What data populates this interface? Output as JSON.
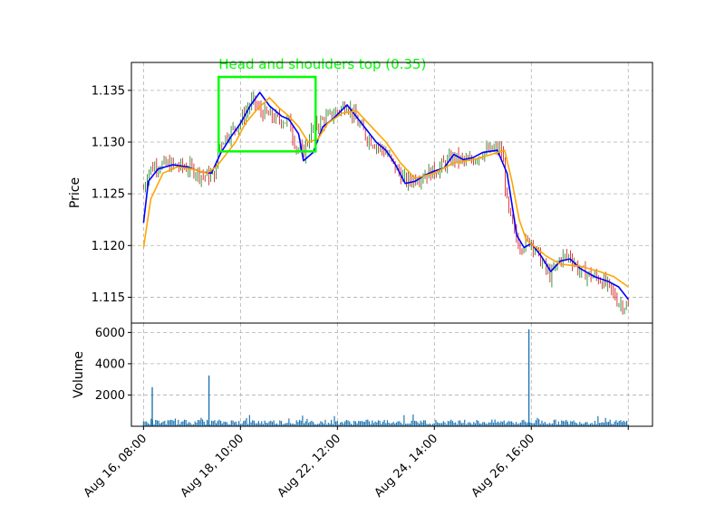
{
  "chart_data": [
    {
      "type": "candlestick",
      "panel": "price",
      "ylabel": "Price",
      "ylim": [
        1.1125,
        1.1377
      ],
      "yticks": [
        1.115,
        1.12,
        1.125,
        1.13,
        1.135
      ],
      "ytick_labels": [
        "1.115",
        "1.120",
        "1.125",
        "1.130",
        "1.135"
      ],
      "x_range": [
        -0.25,
        10.5
      ],
      "xticks": [
        0,
        2,
        4,
        6,
        8,
        10
      ],
      "xtick_labels": [
        "Aug 16, 08:00",
        "Aug 18, 10:00",
        "Aug 22, 12:00",
        "Aug 24, 14:00",
        "Aug 26, 16:00",
        ""
      ],
      "grid": true,
      "close_path": [
        [
          0.0,
          1.1255
        ],
        [
          0.1,
          1.1272
        ],
        [
          0.25,
          1.1278
        ],
        [
          0.5,
          1.1278
        ],
        [
          0.8,
          1.1276
        ],
        [
          1.0,
          1.1274
        ],
        [
          1.2,
          1.1268
        ],
        [
          1.4,
          1.1267
        ],
        [
          1.5,
          1.1272
        ],
        [
          1.55,
          1.1295
        ],
        [
          1.6,
          1.13
        ],
        [
          1.8,
          1.131
        ],
        [
          2.0,
          1.132
        ],
        [
          2.25,
          1.134
        ],
        [
          2.4,
          1.133
        ],
        [
          2.6,
          1.1325
        ],
        [
          2.8,
          1.1322
        ],
        [
          3.0,
          1.132
        ],
        [
          3.15,
          1.1295
        ],
        [
          3.3,
          1.129
        ],
        [
          3.5,
          1.1315
        ],
        [
          3.75,
          1.1322
        ],
        [
          4.0,
          1.133
        ],
        [
          4.2,
          1.1337
        ],
        [
          4.4,
          1.132
        ],
        [
          4.6,
          1.1305
        ],
        [
          5.0,
          1.129
        ],
        [
          5.2,
          1.1275
        ],
        [
          5.4,
          1.1262
        ],
        [
          5.6,
          1.1265
        ],
        [
          6.0,
          1.1272
        ],
        [
          6.4,
          1.1285
        ],
        [
          6.7,
          1.128
        ],
        [
          7.0,
          1.129
        ],
        [
          7.3,
          1.1293
        ],
        [
          7.4,
          1.129
        ],
        [
          7.5,
          1.124
        ],
        [
          7.6,
          1.122
        ],
        [
          7.75,
          1.12
        ],
        [
          8.0,
          1.1205
        ],
        [
          8.2,
          1.1185
        ],
        [
          8.4,
          1.117
        ],
        [
          8.6,
          1.1188
        ],
        [
          8.8,
          1.119
        ],
        [
          9.0,
          1.1175
        ],
        [
          9.4,
          1.1168
        ],
        [
          9.6,
          1.116
        ],
        [
          9.8,
          1.1145
        ],
        [
          10.0,
          1.114
        ]
      ],
      "series": [
        {
          "color": "#0000ff",
          "points": [
            [
              0.0,
              1.1222
            ],
            [
              0.1,
              1.1262
            ],
            [
              0.3,
              1.1274
            ],
            [
              0.6,
              1.1278
            ],
            [
              0.9,
              1.1276
            ],
            [
              1.2,
              1.1271
            ],
            [
              1.4,
              1.127
            ],
            [
              1.6,
              1.129
            ],
            [
              1.8,
              1.1305
            ],
            [
              2.0,
              1.1318
            ],
            [
              2.2,
              1.1335
            ],
            [
              2.4,
              1.1348
            ],
            [
              2.6,
              1.1335
            ],
            [
              2.85,
              1.1325
            ],
            [
              3.0,
              1.1322
            ],
            [
              3.2,
              1.1308
            ],
            [
              3.3,
              1.1282
            ],
            [
              3.5,
              1.129
            ],
            [
              3.7,
              1.1315
            ],
            [
              3.9,
              1.1322
            ],
            [
              4.2,
              1.1336
            ],
            [
              4.5,
              1.1318
            ],
            [
              4.8,
              1.13
            ],
            [
              5.0,
              1.1292
            ],
            [
              5.2,
              1.1278
            ],
            [
              5.4,
              1.126
            ],
            [
              5.6,
              1.1262
            ],
            [
              5.8,
              1.1268
            ],
            [
              6.0,
              1.1272
            ],
            [
              6.2,
              1.1275
            ],
            [
              6.4,
              1.1288
            ],
            [
              6.6,
              1.1283
            ],
            [
              6.8,
              1.1285
            ],
            [
              7.0,
              1.129
            ],
            [
              7.3,
              1.1292
            ],
            [
              7.5,
              1.127
            ],
            [
              7.6,
              1.124
            ],
            [
              7.7,
              1.121
            ],
            [
              7.85,
              1.1198
            ],
            [
              8.0,
              1.1202
            ],
            [
              8.2,
              1.119
            ],
            [
              8.4,
              1.1175
            ],
            [
              8.6,
              1.1185
            ],
            [
              8.8,
              1.1187
            ],
            [
              9.0,
              1.1178
            ],
            [
              9.3,
              1.117
            ],
            [
              9.6,
              1.1165
            ],
            [
              9.8,
              1.116
            ],
            [
              10.0,
              1.1148
            ]
          ]
        },
        {
          "color": "#ffa500",
          "points": [
            [
              0.0,
              1.1198
            ],
            [
              0.15,
              1.1245
            ],
            [
              0.4,
              1.127
            ],
            [
              0.7,
              1.1276
            ],
            [
              1.0,
              1.1274
            ],
            [
              1.3,
              1.127
            ],
            [
              1.5,
              1.1276
            ],
            [
              1.7,
              1.1288
            ],
            [
              1.9,
              1.13
            ],
            [
              2.1,
              1.1318
            ],
            [
              2.35,
              1.1332
            ],
            [
              2.6,
              1.1343
            ],
            [
              2.8,
              1.1333
            ],
            [
              3.0,
              1.1325
            ],
            [
              3.2,
              1.1315
            ],
            [
              3.4,
              1.13
            ],
            [
              3.6,
              1.1303
            ],
            [
              3.8,
              1.1318
            ],
            [
              4.1,
              1.1328
            ],
            [
              4.4,
              1.133
            ],
            [
              4.7,
              1.1315
            ],
            [
              5.0,
              1.13
            ],
            [
              5.3,
              1.128
            ],
            [
              5.6,
              1.1265
            ],
            [
              6.0,
              1.127
            ],
            [
              6.4,
              1.128
            ],
            [
              6.8,
              1.1283
            ],
            [
              7.1,
              1.1287
            ],
            [
              7.45,
              1.1292
            ],
            [
              7.6,
              1.1262
            ],
            [
              7.75,
              1.1225
            ],
            [
              7.9,
              1.1205
            ],
            [
              8.1,
              1.1198
            ],
            [
              8.3,
              1.119
            ],
            [
              8.6,
              1.1182
            ],
            [
              9.0,
              1.118
            ],
            [
              9.4,
              1.1175
            ],
            [
              9.7,
              1.117
            ],
            [
              10.0,
              1.116
            ]
          ]
        }
      ],
      "annotations": [
        {
          "text": "Head and shoulders top (0.35)",
          "color": "#00ff00",
          "x0": 1.55,
          "x1": 3.55,
          "y0": 1.1291,
          "y1": 1.1363
        }
      ]
    },
    {
      "type": "bar",
      "panel": "volume",
      "ylabel": "Volume",
      "ylim": [
        0,
        6600
      ],
      "yticks": [
        2000,
        4000,
        6000
      ],
      "ytick_labels": [
        "2000",
        "4000",
        "6000"
      ],
      "bar_color": "#1f77b4",
      "base_volume": 300,
      "spikes": [
        {
          "x": 0.18,
          "value": 2500
        },
        {
          "x": 1.35,
          "value": 3250
        },
        {
          "x": 7.95,
          "value": 6200
        }
      ]
    }
  ]
}
